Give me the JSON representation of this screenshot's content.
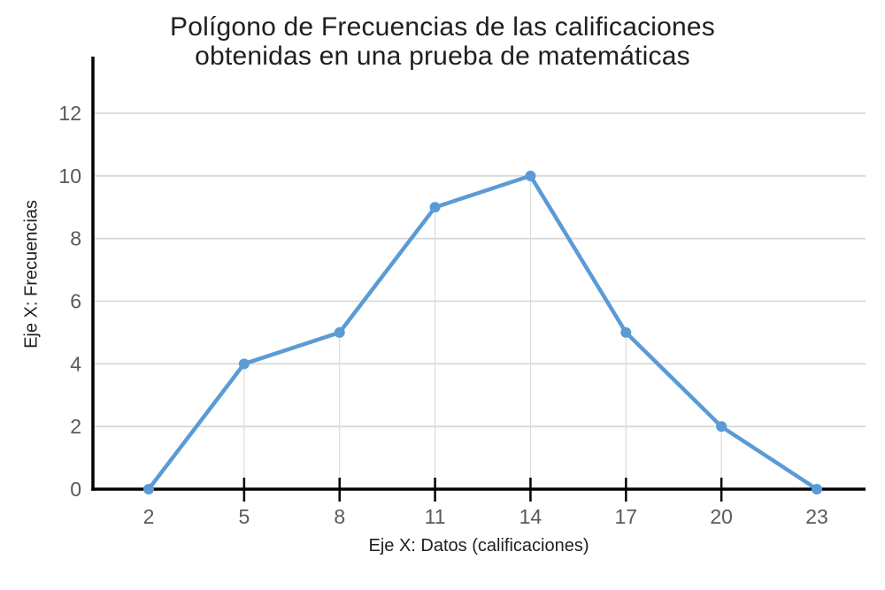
{
  "chart_data": {
    "type": "line",
    "title": "Polígono de Frecuencias de las calificaciones obtenidas en una prueba de matemáticas",
    "xlabel": "Eje X: Datos (calificaciones)",
    "ylabel": "Eje X: Frecuencias",
    "x": [
      2,
      5,
      8,
      11,
      14,
      17,
      20,
      23
    ],
    "values": [
      0,
      4,
      5,
      9,
      10,
      5,
      2,
      0
    ],
    "yticks": [
      0,
      2,
      4,
      6,
      8,
      10,
      12
    ],
    "ylim": [
      0,
      12
    ],
    "grid": "horizontal",
    "drop_lines": true,
    "markers": "circle",
    "legend": "none",
    "colors": {
      "line": "#5B9BD5",
      "marker": "#5B9BD5",
      "gridline": "#D9D9D9",
      "drop_line": "#DCDCDC",
      "axis": "#000000",
      "tick_label": "#595959",
      "background": "#FFFFFF"
    }
  }
}
